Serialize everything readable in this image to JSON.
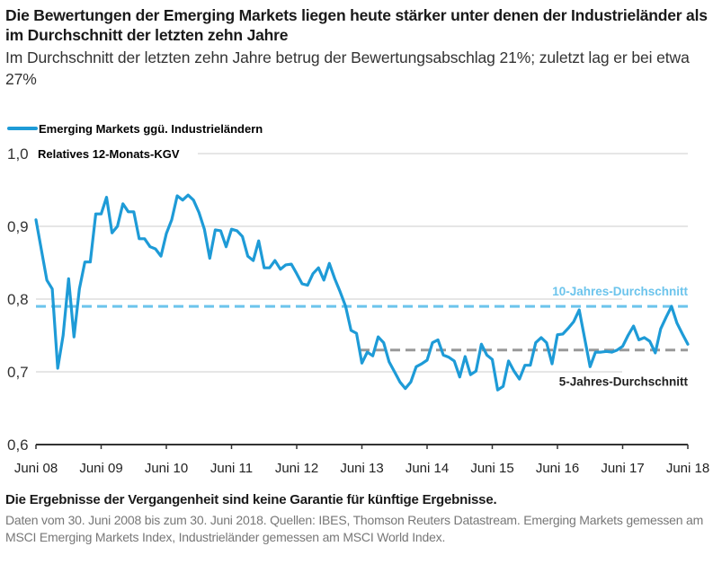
{
  "title": "Die Bewertungen der Emerging Markets liegen heute stärker unter denen der Industrieländer als im Durchschnitt der letzten zehn Jahre",
  "subtitle": "Im Durchschnitt der letzten zehn Jahre betrug der Bewertungsabschlag 21%; zuletzt lag er bei etwa 27%",
  "footer": {
    "disclaimer": "Die Ergebnisse der Vergangenheit sind keine Garantie für künftige Ergebnisse.",
    "source": "Daten vom 30. Juni 2008 bis zum 30. Juni 2018. Quellen: IBES, Thomson Reuters Datastream. Emerging Markets gemessen am MSCI Emerging Markets Index, Industrieländer gemessen am MSCI World Index."
  },
  "chart_data": {
    "type": "line",
    "title": "",
    "ylabel": "Relatives 12-Monats-KGV",
    "ylim": [
      0.6,
      1.0
    ],
    "yticks": [
      "1,0",
      "0,9",
      "0,8",
      "0,7",
      "0,6"
    ],
    "ytick_values": [
      1.0,
      0.9,
      0.8,
      0.7,
      0.6
    ],
    "xticks": [
      "Juni 08",
      "Juni 09",
      "Juni 10",
      "Juni 11",
      "Juni 12",
      "Juni 13",
      "Juni 14",
      "Juni 15",
      "Juni 16",
      "Juni 17",
      "Juni 18"
    ],
    "xtick_dates": [
      "2008-06",
      "2009-06",
      "2010-06",
      "2011-06",
      "2012-06",
      "2013-06",
      "2014-06",
      "2015-06",
      "2016-06",
      "2017-06",
      "2018-06"
    ],
    "grid": true,
    "legend": "top-left",
    "colors": {
      "series": "#1e9bd7",
      "avg10": "#6cc4ec",
      "avg5": "#999999",
      "axis": "#333333",
      "grid": "#cccccc"
    },
    "series": [
      {
        "name": "Emerging Markets ggü. Industrieländern",
        "x": [
          "2008-06",
          "2008-08",
          "2008-09",
          "2008-10",
          "2008-11",
          "2008-12",
          "2009-01",
          "2009-02",
          "2009-03",
          "2009-04",
          "2009-05",
          "2009-06",
          "2009-07",
          "2009-08",
          "2009-09",
          "2009-10",
          "2009-11",
          "2009-12",
          "2010-01",
          "2010-02",
          "2010-03",
          "2010-04",
          "2010-05",
          "2010-06",
          "2010-07",
          "2010-08",
          "2010-09",
          "2010-10",
          "2010-11",
          "2010-12",
          "2011-01",
          "2011-02",
          "2011-03",
          "2011-04",
          "2011-05",
          "2011-06",
          "2011-07",
          "2011-08",
          "2011-09",
          "2011-10",
          "2011-11",
          "2011-12",
          "2012-01",
          "2012-02",
          "2012-03",
          "2012-04",
          "2012-05",
          "2012-06",
          "2012-07",
          "2012-08",
          "2012-09",
          "2012-10",
          "2012-11",
          "2012-12",
          "2013-01",
          "2013-02",
          "2013-03",
          "2013-04",
          "2013-05",
          "2013-06",
          "2013-07",
          "2013-08",
          "2013-09",
          "2013-10",
          "2013-11",
          "2013-12",
          "2014-01",
          "2014-02",
          "2014-03",
          "2014-04",
          "2014-05",
          "2014-06",
          "2014-07",
          "2014-08",
          "2014-09",
          "2014-10",
          "2014-11",
          "2014-12",
          "2015-01",
          "2015-02",
          "2015-03",
          "2015-04",
          "2015-05",
          "2015-06",
          "2015-07",
          "2015-08",
          "2015-09",
          "2015-10",
          "2015-11",
          "2015-12",
          "2016-01",
          "2016-02",
          "2016-03",
          "2016-04",
          "2016-05",
          "2016-06",
          "2016-07",
          "2016-08",
          "2016-09",
          "2016-10",
          "2016-12",
          "2017-01",
          "2017-02",
          "2017-03",
          "2017-04",
          "2017-05",
          "2017-06",
          "2017-07",
          "2017-08",
          "2017-09",
          "2017-10",
          "2017-11",
          "2017-12",
          "2018-01",
          "2018-02",
          "2018-03",
          "2018-04",
          "2018-05",
          "2018-06"
        ],
        "values": [
          0.909,
          0.826,
          0.814,
          0.705,
          0.75,
          0.828,
          0.748,
          0.814,
          0.851,
          0.851,
          0.917,
          0.917,
          0.94,
          0.891,
          0.9,
          0.931,
          0.92,
          0.92,
          0.883,
          0.883,
          0.872,
          0.869,
          0.859,
          0.89,
          0.909,
          0.942,
          0.936,
          0.943,
          0.936,
          0.919,
          0.896,
          0.856,
          0.895,
          0.894,
          0.872,
          0.896,
          0.894,
          0.886,
          0.859,
          0.853,
          0.88,
          0.843,
          0.843,
          0.853,
          0.841,
          0.847,
          0.848,
          0.835,
          0.821,
          0.819,
          0.835,
          0.843,
          0.826,
          0.849,
          0.828,
          0.81,
          0.79,
          0.757,
          0.753,
          0.712,
          0.727,
          0.722,
          0.748,
          0.74,
          0.714,
          0.7,
          0.686,
          0.677,
          0.686,
          0.707,
          0.711,
          0.716,
          0.74,
          0.744,
          0.723,
          0.72,
          0.715,
          0.693,
          0.721,
          0.696,
          0.701,
          0.738,
          0.723,
          0.717,
          0.675,
          0.68,
          0.715,
          0.701,
          0.69,
          0.709,
          0.709,
          0.74,
          0.747,
          0.74,
          0.711,
          0.751,
          0.752,
          0.76,
          0.769,
          0.785,
          0.707,
          0.727,
          0.727,
          0.728,
          0.727,
          0.73,
          0.735,
          0.75,
          0.763,
          0.744,
          0.747,
          0.742,
          0.726,
          0.759,
          0.775,
          0.79,
          0.767,
          0.752,
          0.738
        ]
      }
    ],
    "reference_lines": [
      {
        "name": "10-Jahres-Durchschnitt",
        "value": 0.79
      },
      {
        "name": "5-Jahres-Durchschnitt",
        "value": 0.73
      }
    ]
  }
}
